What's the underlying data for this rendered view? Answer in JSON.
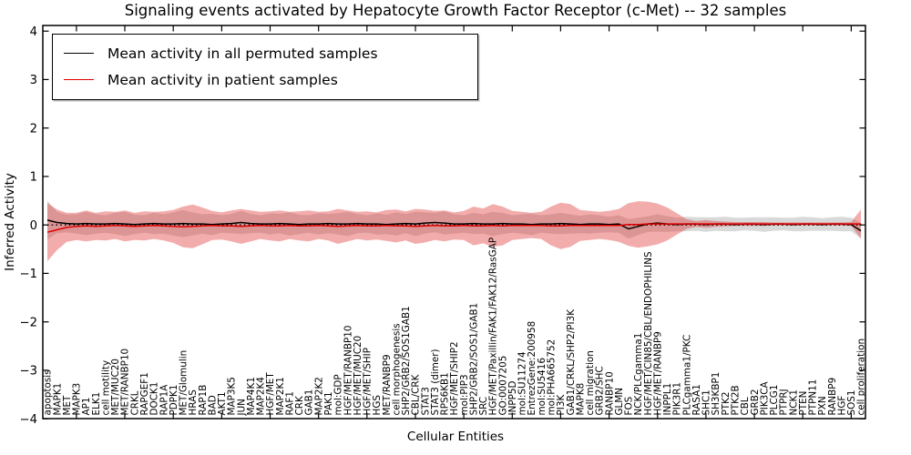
{
  "title": "Signaling events activated by Hepatocyte Growth Factor Receptor (c-Met) -- 32 samples",
  "axes": {
    "xlabel": "Cellular Entities",
    "ylabel": "Inferred Activity"
  },
  "legend": {
    "items": [
      {
        "label": "Mean activity in all permuted samples",
        "color": "#000000"
      },
      {
        "label": "Mean activity in patient samples",
        "color": "#e00000"
      }
    ]
  },
  "chart_data": {
    "type": "line",
    "title": "Signaling events activated by Hepatocyte Growth Factor Receptor (c-Met) -- 32 samples",
    "xlabel": "Cellular Entities",
    "ylabel": "Inferred Activity",
    "ylim": [
      -4,
      4
    ],
    "yticks": [
      -4,
      -3,
      -2,
      -1,
      0,
      1,
      2,
      3,
      4
    ],
    "grid": false,
    "legend_position": "upper left",
    "zero_line": {
      "y": 0,
      "style": "dotted",
      "color": "#000000"
    },
    "categories": [
      "apoptosis",
      "MAPK1",
      "MET",
      "MAPK3",
      "AP1",
      "ELK1",
      "cell motility",
      "MET/MUC20",
      "MET/RANBP10",
      "CRKL",
      "RAPGEF1",
      "DOCK1",
      "RAP1A",
      "PDPK1",
      "MET/Glomulin",
      "HRAS",
      "RAP1B",
      "BAD",
      "AKT1",
      "MAP3K5",
      "JUN",
      "MAP4K1",
      "MAP2K4",
      "HGF/MET",
      "MAP2K1",
      "RAF1",
      "CRK",
      "GAB1",
      "MAP2K2",
      "PAK1",
      "mol:GDP",
      "HGF/MET/RANBP10",
      "HGF/MET/MUC20",
      "HGF/MET/SHIP",
      "HGS",
      "MET/RANBP9",
      "cell morphogenesis",
      "SHP2/GRB2/SOS1GAB1",
      "CBL/CRK",
      "STAT3",
      "STAT3 (dimer)",
      "RPS6KB1",
      "HGF/MET/SHIP2",
      "mol:PIP3",
      "SHP2/GRB2/SOS1/GAB1",
      "SRC",
      "HGF/MET/Paxillin/FAK1/FAK12/RasGAP",
      "GO:0007205",
      "INPP5D",
      "mol:SU11274",
      "EntrezGene:200958",
      "mol:SU5416",
      "mol:PHA665752",
      "PI3K",
      "GAB1/CRKL/SHP2/PI3K",
      "MAPK8",
      "cell migration",
      "GRB2/SHC",
      "RANBP10",
      "GLMN",
      "FOS",
      "NCK/PLCgamma1",
      "HGF/MET/CIN85/CBL/ENDOPHILINS",
      "HGF/MET/RANBP9",
      "INPPL1",
      "PIK3R1",
      "PLCgamma1/PKC",
      "RASA1",
      "SHC1",
      "SH3KBP1",
      "PTK2",
      "PTK2B",
      "CBL",
      "GRB2",
      "PIK3CA",
      "PLCG1",
      "PTPRJ",
      "NCK1",
      "PTEN",
      "PTPN11",
      "PXN",
      "RANBP9",
      "HGF",
      "SOS1",
      "cell proliferation"
    ],
    "series": [
      {
        "name": "Mean activity in all permuted samples",
        "color": "#000000",
        "band_color": "#aaaaaa",
        "band_opacity": 0.45,
        "mean": [
          0.1,
          0.05,
          0.03,
          0.02,
          0.03,
          0.02,
          0.02,
          0.03,
          0.02,
          0.01,
          0.02,
          0.03,
          0.02,
          0.02,
          0.03,
          0.02,
          0.02,
          0.01,
          0.02,
          0.03,
          0.05,
          0.03,
          0.02,
          0.02,
          0.03,
          0.02,
          0.01,
          0.02,
          0.02,
          0.03,
          0.02,
          0.02,
          0.03,
          0.02,
          0.02,
          0.01,
          0.02,
          0.03,
          0.02,
          0.04,
          0.05,
          0.04,
          0.02,
          0.02,
          0.03,
          0.02,
          0.02,
          0.03,
          0.02,
          0.02,
          0.01,
          0.02,
          0.02,
          0.03,
          0.02,
          0.01,
          0.02,
          0.02,
          0.01,
          0.02,
          -0.08,
          -0.03,
          0.02,
          0.04,
          0.02,
          0.01,
          0.02,
          0.02,
          0.01,
          0.02,
          0.02,
          0.01,
          0.02,
          0.02,
          0.01,
          0.02,
          0.02,
          0.01,
          0.02,
          0.02,
          0.01,
          0.02,
          0.02,
          0.01,
          -0.12
        ],
        "std": [
          0.4,
          0.22,
          0.18,
          0.2,
          0.24,
          0.2,
          0.18,
          0.22,
          0.25,
          0.2,
          0.18,
          0.22,
          0.2,
          0.24,
          0.28,
          0.24,
          0.2,
          0.22,
          0.18,
          0.2,
          0.24,
          0.2,
          0.18,
          0.22,
          0.2,
          0.24,
          0.2,
          0.18,
          0.22,
          0.2,
          0.22,
          0.25,
          0.2,
          0.18,
          0.22,
          0.2,
          0.24,
          0.2,
          0.25,
          0.22,
          0.2,
          0.24,
          0.2,
          0.18,
          0.22,
          0.2,
          0.25,
          0.22,
          0.18,
          0.2,
          0.22,
          0.18,
          0.2,
          0.22,
          0.2,
          0.18,
          0.2,
          0.18,
          0.16,
          0.18,
          0.2,
          0.18,
          0.16,
          0.18,
          0.16,
          0.14,
          0.15,
          0.14,
          0.15,
          0.14,
          0.15,
          0.14,
          0.13,
          0.14,
          0.15,
          0.14,
          0.13,
          0.14,
          0.15,
          0.14,
          0.13,
          0.14,
          0.15,
          0.14,
          0.16
        ]
      },
      {
        "name": "Mean activity in patient samples",
        "color": "#e00000",
        "band_color": "#e03030",
        "band_opacity": 0.4,
        "mean": [
          -0.15,
          -0.1,
          -0.05,
          -0.03,
          -0.02,
          -0.03,
          -0.02,
          -0.01,
          -0.02,
          -0.03,
          -0.02,
          -0.01,
          -0.02,
          -0.03,
          -0.04,
          -0.03,
          -0.02,
          -0.01,
          -0.02,
          -0.02,
          -0.03,
          -0.02,
          -0.01,
          -0.02,
          -0.02,
          -0.01,
          -0.02,
          -0.02,
          -0.01,
          -0.02,
          -0.03,
          -0.02,
          -0.01,
          -0.02,
          -0.02,
          -0.01,
          -0.02,
          -0.02,
          -0.03,
          -0.02,
          -0.01,
          -0.02,
          -0.02,
          -0.01,
          -0.02,
          -0.02,
          -0.01,
          -0.02,
          -0.01,
          -0.01,
          -0.01,
          -0.01,
          -0.02,
          -0.02,
          -0.01,
          -0.01,
          -0.01,
          -0.01,
          -0.01,
          -0.01,
          0.01,
          0.01,
          0.02,
          0.02,
          0.02,
          0.02,
          0.02,
          0.02,
          0.02,
          0.02,
          0.02,
          0.02,
          0.02,
          0.02,
          0.02,
          0.02,
          0.02,
          0.02,
          0.02,
          0.02,
          0.02,
          0.02,
          0.02,
          0.02,
          0.02
        ],
        "std": [
          0.6,
          0.42,
          0.3,
          0.28,
          0.32,
          0.28,
          0.3,
          0.28,
          0.32,
          0.28,
          0.3,
          0.28,
          0.3,
          0.34,
          0.42,
          0.45,
          0.38,
          0.3,
          0.28,
          0.32,
          0.36,
          0.32,
          0.28,
          0.3,
          0.32,
          0.28,
          0.3,
          0.32,
          0.28,
          0.3,
          0.36,
          0.32,
          0.28,
          0.3,
          0.28,
          0.32,
          0.34,
          0.3,
          0.36,
          0.34,
          0.3,
          0.32,
          0.28,
          0.3,
          0.4,
          0.36,
          0.44,
          0.4,
          0.3,
          0.28,
          0.26,
          0.28,
          0.4,
          0.48,
          0.44,
          0.32,
          0.3,
          0.28,
          0.3,
          0.34,
          0.44,
          0.48,
          0.46,
          0.42,
          0.34,
          0.22,
          0.1,
          0.06,
          0.08,
          0.06,
          0.05,
          0.04,
          0.04,
          0.04,
          0.04,
          0.03,
          0.03,
          0.03,
          0.03,
          0.03,
          0.03,
          0.03,
          0.03,
          0.04,
          0.3
        ]
      }
    ]
  }
}
